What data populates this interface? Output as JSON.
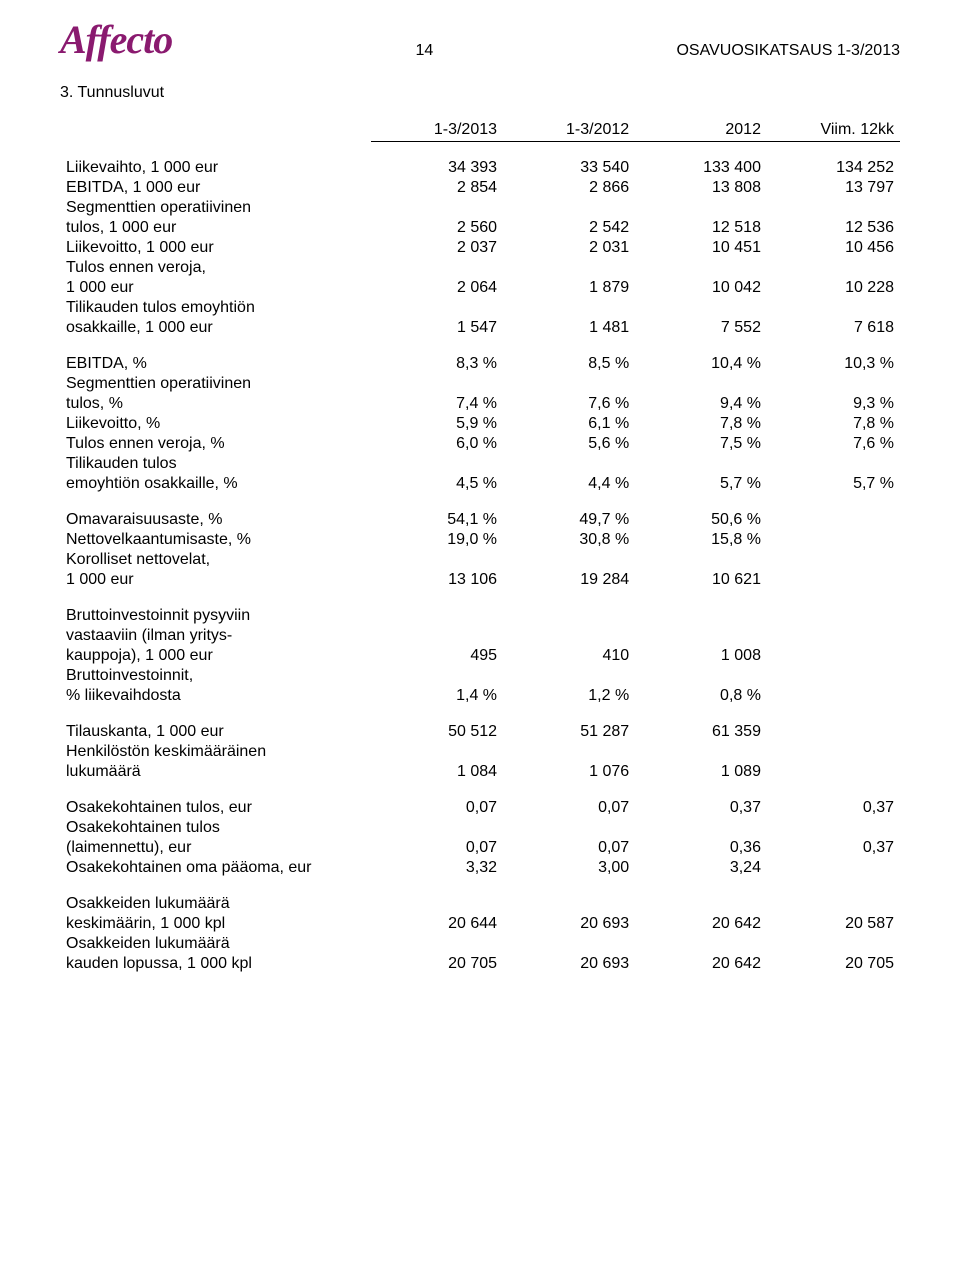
{
  "header": {
    "logo": "Affecto",
    "page_number": "14",
    "doc_title": "OSAVUOSIKATSAUS 1-3/2013"
  },
  "section_title": "3. Tunnusluvut",
  "columns": {
    "c1": "1-3/2013",
    "c2": "1-3/2012",
    "c3": "2012",
    "c4": "Viim. 12kk"
  },
  "rows": {
    "r1": {
      "label": "Liikevaihto, 1 000 eur",
      "v": [
        "34 393",
        "33 540",
        "133 400",
        "134 252"
      ]
    },
    "r2": {
      "label": "EBITDA, 1 000 eur",
      "v": [
        "2 854",
        "2 866",
        "13 808",
        "13 797"
      ]
    },
    "r3a": {
      "label": "Segmenttien operatiivinen"
    },
    "r3b": {
      "label": "tulos, 1 000 eur",
      "v": [
        "2 560",
        "2 542",
        "12 518",
        "12 536"
      ]
    },
    "r4": {
      "label": "Liikevoitto, 1 000 eur",
      "v": [
        "2 037",
        "2 031",
        "10 451",
        "10 456"
      ]
    },
    "r5a": {
      "label": "Tulos ennen veroja,"
    },
    "r5b": {
      "label": "1 000 eur",
      "v": [
        "2 064",
        "1 879",
        "10 042",
        "10 228"
      ]
    },
    "r6a": {
      "label": "Tilikauden tulos emoyhtiön"
    },
    "r6b": {
      "label": "osakkaille, 1 000 eur",
      "v": [
        "1 547",
        "1 481",
        "7 552",
        "7 618"
      ]
    },
    "r7": {
      "label": "EBITDA, %",
      "v": [
        "8,3 %",
        "8,5 %",
        "10,4 %",
        "10,3 %"
      ]
    },
    "r8a": {
      "label": "Segmenttien operatiivinen"
    },
    "r8b": {
      "label": "tulos, %",
      "v": [
        "7,4 %",
        "7,6 %",
        "9,4 %",
        "9,3 %"
      ]
    },
    "r9": {
      "label": "Liikevoitto, %",
      "v": [
        "5,9 %",
        "6,1 %",
        "7,8 %",
        "7,8 %"
      ]
    },
    "r10": {
      "label": "Tulos ennen veroja, %",
      "v": [
        "6,0 %",
        "5,6 %",
        "7,5 %",
        "7,6 %"
      ]
    },
    "r11a": {
      "label": "Tilikauden tulos"
    },
    "r11b": {
      "label": "emoyhtiön osakkaille, %",
      "v": [
        "4,5 %",
        "4,4 %",
        "5,7 %",
        "5,7 %"
      ]
    },
    "r12": {
      "label": "Omavaraisuusaste, %",
      "v": [
        "54,1 %",
        "49,7 %",
        "50,6 %",
        ""
      ]
    },
    "r13": {
      "label": "Nettovelkaantumisaste, %",
      "v": [
        "19,0 %",
        "30,8 %",
        "15,8 %",
        ""
      ]
    },
    "r14a": {
      "label": "Korolliset nettovelat,"
    },
    "r14b": {
      "label": "1 000 eur",
      "v": [
        "13 106",
        "19 284",
        "10 621",
        ""
      ]
    },
    "r15a": {
      "label": "Bruttoinvestoinnit pysyviin"
    },
    "r15b": {
      "label": "vastaaviin (ilman yritys-"
    },
    "r15c": {
      "label": "kauppoja), 1 000 eur",
      "v": [
        "495",
        "410",
        "1 008",
        ""
      ]
    },
    "r16a": {
      "label": "Bruttoinvestoinnit,"
    },
    "r16b": {
      "label": "% liikevaihdosta",
      "v": [
        "1,4 %",
        "1,2 %",
        "0,8 %",
        ""
      ]
    },
    "r17": {
      "label": "Tilauskanta, 1 000 eur",
      "v": [
        "50 512",
        "51 287",
        "61 359",
        ""
      ]
    },
    "r18a": {
      "label": "Henkilöstön keskimääräinen"
    },
    "r18b": {
      "label": "lukumäärä",
      "v": [
        "1 084",
        "1 076",
        "1 089",
        ""
      ]
    },
    "r19": {
      "label": "Osakekohtainen tulos, eur",
      "v": [
        "0,07",
        "0,07",
        "0,37",
        "0,37"
      ]
    },
    "r20a": {
      "label": "Osakekohtainen tulos"
    },
    "r20b": {
      "label": "(laimennettu), eur",
      "v": [
        "0,07",
        "0,07",
        "0,36",
        "0,37"
      ]
    },
    "r21": {
      "label": "Osakekohtainen oma pääoma, eur",
      "v": [
        "3,32",
        "3,00",
        "3,24",
        ""
      ]
    },
    "r22a": {
      "label": "Osakkeiden lukumäärä"
    },
    "r22b": {
      "label": "keskimäärin, 1 000 kpl",
      "v": [
        "20 644",
        "20 693",
        "20 642",
        "20 587"
      ]
    },
    "r23a": {
      "label": "Osakkeiden lukumäärä"
    },
    "r23b": {
      "label": "kauden lopussa, 1 000 kpl",
      "v": [
        "20 705",
        "20 693",
        "20 642",
        "20 705"
      ]
    }
  }
}
